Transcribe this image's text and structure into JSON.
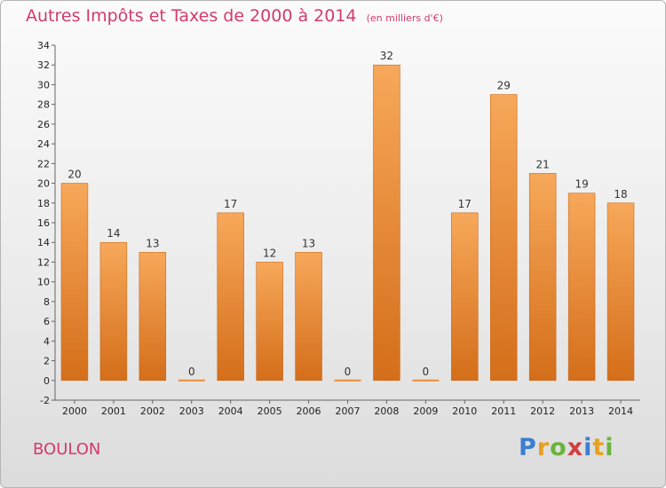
{
  "chart_data": {
    "type": "bar",
    "title": "Autres Impôts et Taxes de 2000 à 2014",
    "subtitle": "(en milliers d'€)",
    "categories": [
      "2000",
      "2001",
      "2002",
      "2003",
      "2004",
      "2005",
      "2006",
      "2007",
      "2008",
      "2009",
      "2010",
      "2011",
      "2012",
      "2013",
      "2014"
    ],
    "values": [
      20,
      14,
      13,
      0,
      17,
      12,
      13,
      0,
      32,
      0,
      17,
      29,
      21,
      19,
      18
    ],
    "ylim": [
      -2,
      34
    ],
    "yticks": [
      -2,
      0,
      2,
      4,
      6,
      8,
      10,
      12,
      14,
      16,
      18,
      20,
      22,
      24,
      26,
      28,
      30,
      32,
      34
    ],
    "xlabel": "",
    "ylabel": "",
    "grid": false,
    "bar_color": "#ee8c34",
    "bar_gradient_top": "#f7a85a",
    "bar_gradient_bottom": "#d46e1a"
  },
  "commune": "BOULON",
  "logo": {
    "letters": [
      "P",
      "r",
      "o",
      "x",
      "i",
      "t",
      "i"
    ],
    "colors": [
      "#3c7fd0",
      "#e8a020",
      "#6ab43c",
      "#d04040",
      "#3c7fd0",
      "#e8a020",
      "#6ab43c"
    ]
  }
}
